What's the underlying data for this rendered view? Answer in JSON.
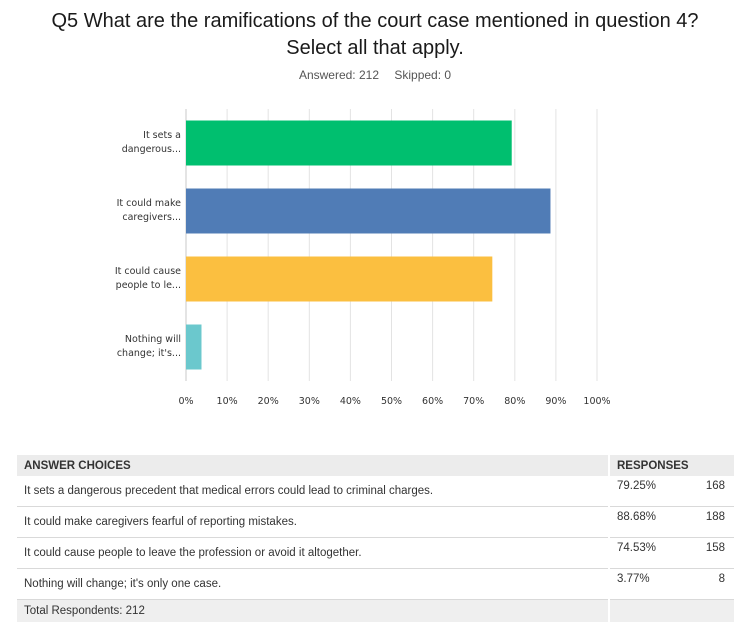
{
  "question": {
    "title_line1": "Q5 What are the ramifications of the court case mentioned in question 4?",
    "title_line2": "Select all that apply.",
    "answered": "Answered: 212",
    "skipped": "Skipped: 0"
  },
  "chart_data": {
    "type": "bar",
    "orientation": "horizontal",
    "categories": [
      "It sets a dangerous...",
      "It could make caregivers...",
      "It could cause people to le...",
      "Nothing will change; it's..."
    ],
    "category_lines": [
      [
        "It sets a",
        "dangerous..."
      ],
      [
        "It could make",
        "caregivers..."
      ],
      [
        "It could cause",
        "people to le..."
      ],
      [
        "Nothing will",
        "change; it's..."
      ]
    ],
    "values": [
      79.25,
      88.68,
      74.53,
      3.77
    ],
    "colors": [
      "#00bf6f",
      "#507cb6",
      "#fbbf40",
      "#6bc8cd"
    ],
    "x_ticks": [
      "0%",
      "10%",
      "20%",
      "30%",
      "40%",
      "50%",
      "60%",
      "70%",
      "80%",
      "90%",
      "100%"
    ],
    "xlim": [
      0,
      100
    ],
    "grid": true
  },
  "table": {
    "headers": {
      "choice": "ANSWER CHOICES",
      "responses": "RESPONSES"
    },
    "rows": [
      {
        "choice": "It sets a dangerous precedent that medical errors could lead to criminal charges.",
        "percent": "79.25%",
        "count": "168"
      },
      {
        "choice": "It could make caregivers fearful of reporting mistakes.",
        "percent": "88.68%",
        "count": "188"
      },
      {
        "choice": "It could cause people to leave the profession or avoid it altogether.",
        "percent": "74.53%",
        "count": "158"
      },
      {
        "choice": "Nothing will change; it's only one case.",
        "percent": "3.77%",
        "count": "8"
      }
    ],
    "total": "Total Respondents: 212"
  }
}
